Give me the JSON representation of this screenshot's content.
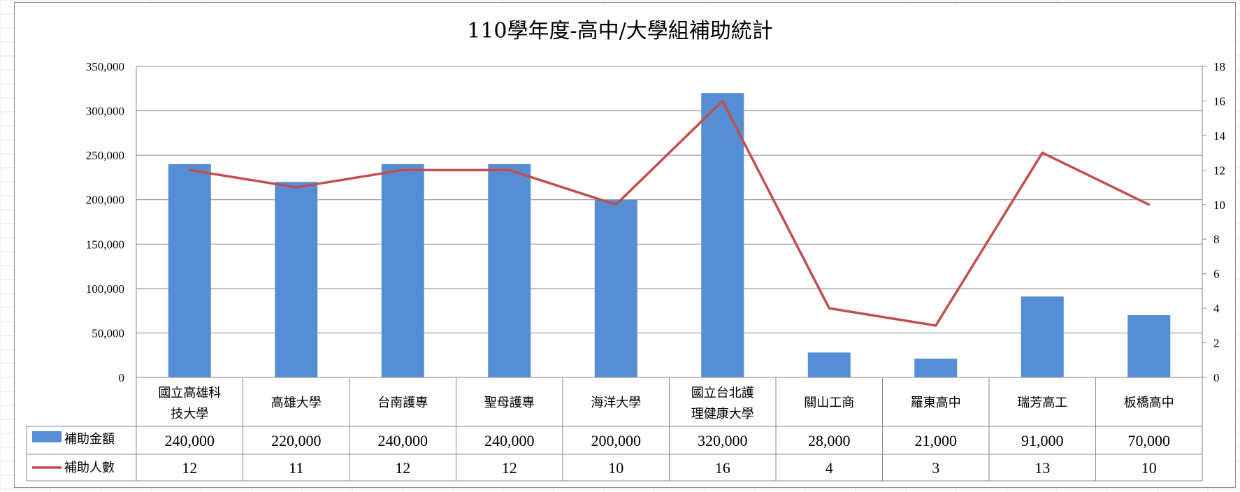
{
  "chart_data": {
    "type": "bar",
    "title": "110學年度-高中/大學組補助統計",
    "categories": [
      [
        "國立高雄科",
        "技大學"
      ],
      [
        "高雄大學"
      ],
      [
        "台南護專"
      ],
      [
        "聖母護專"
      ],
      [
        "海洋大學"
      ],
      [
        "國立台北護",
        "理健康大學"
      ],
      [
        "關山工商"
      ],
      [
        "羅東高中"
      ],
      [
        "瑞芳高工"
      ],
      [
        "板橋高中"
      ]
    ],
    "series": [
      {
        "name": "補助金額",
        "type": "bar",
        "axis": "left",
        "color": "#558ed5",
        "values": [
          240000,
          220000,
          240000,
          240000,
          200000,
          320000,
          28000,
          21000,
          91000,
          70000
        ],
        "labels": [
          "240,000",
          "220,000",
          "240,000",
          "240,000",
          "200,000",
          "320,000",
          "28,000",
          "21,000",
          "91,000",
          "70,000"
        ]
      },
      {
        "name": "補助人數",
        "type": "line",
        "axis": "right",
        "color": "#c0504d",
        "values": [
          12,
          11,
          12,
          12,
          10,
          16,
          4,
          3,
          13,
          10
        ],
        "labels": [
          "12",
          "11",
          "12",
          "12",
          "10",
          "16",
          "4",
          "3",
          "13",
          "10"
        ]
      }
    ],
    "ylim": [
      0,
      350000
    ],
    "y_ticks": [
      "0",
      "50,000",
      "100,000",
      "150,000",
      "200,000",
      "250,000",
      "300,000",
      "350,000"
    ],
    "y2lim": [
      0,
      18
    ],
    "y2_ticks": [
      "0",
      "2",
      "4",
      "6",
      "8",
      "10",
      "12",
      "14",
      "16",
      "18"
    ],
    "grid": true,
    "legend": "data-table"
  }
}
